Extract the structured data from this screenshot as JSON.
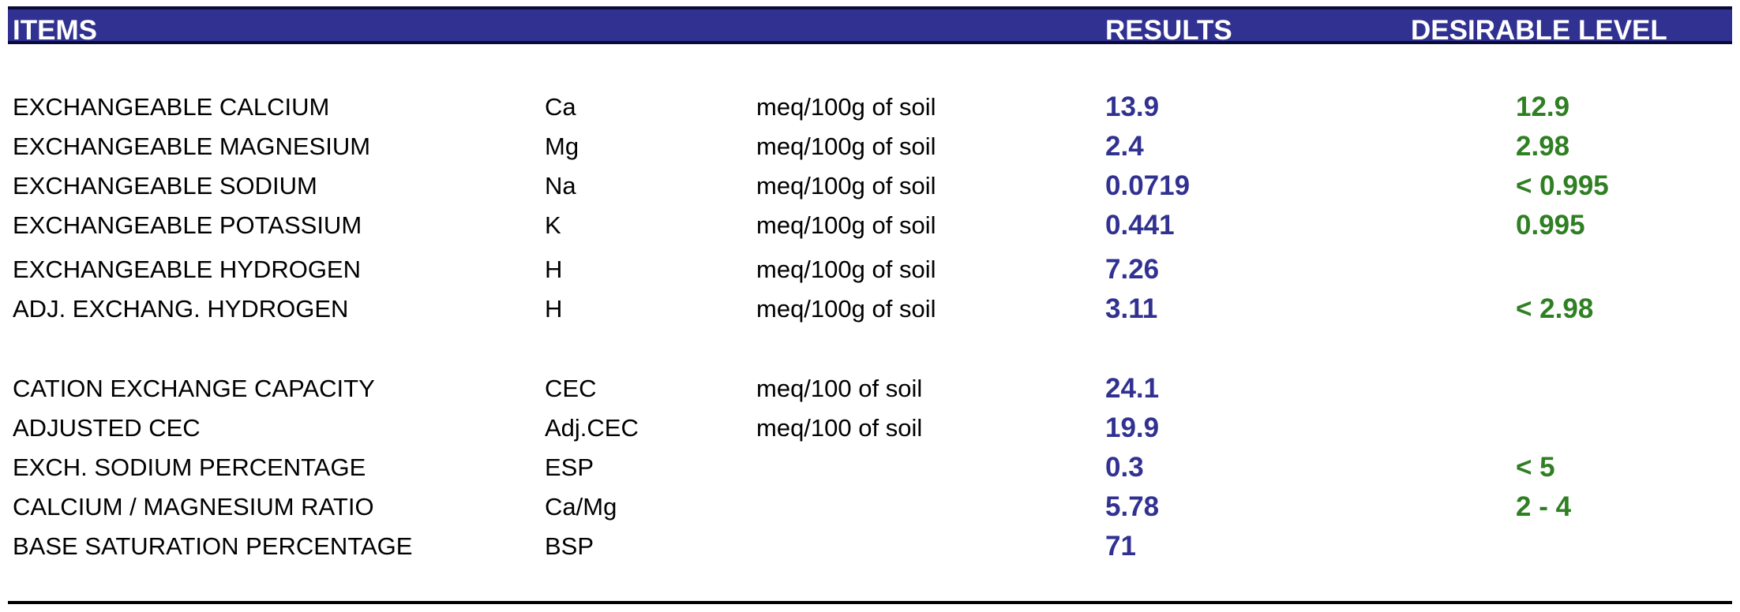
{
  "header": {
    "items_label": "ITEMS",
    "results_label": "RESULTS",
    "desirable_label": "DESIRABLE LEVEL"
  },
  "rows": [
    {
      "item": "EXCHANGEABLE CALCIUM",
      "symbol": "Ca",
      "unit": "meq/100g of soil",
      "result": "13.9",
      "desirable": "12.9"
    },
    {
      "item": "EXCHANGEABLE MAGNESIUM",
      "symbol": "Mg",
      "unit": "meq/100g of soil",
      "result": "2.4",
      "desirable": "2.98"
    },
    {
      "item": "EXCHANGEABLE SODIUM",
      "symbol": "Na",
      "unit": "meq/100g of soil",
      "result": "0.0719",
      "desirable": "< 0.995"
    },
    {
      "item": "EXCHANGEABLE POTASSIUM",
      "symbol": "K",
      "unit": "meq/100g of soil",
      "result": "0.441",
      "desirable": "0.995"
    },
    {
      "item": "EXCHANGEABLE HYDROGEN",
      "symbol": "H",
      "unit": "meq/100g of soil",
      "result": "7.26",
      "desirable": ""
    },
    {
      "item": "ADJ. EXCHANG. HYDROGEN",
      "symbol": "H",
      "unit": "meq/100g of soil",
      "result": "3.11",
      "desirable": "< 2.98"
    },
    {
      "item": "CATION EXCHANGE CAPACITY",
      "symbol": "CEC",
      "unit": "meq/100 of soil",
      "result": "24.1",
      "desirable": ""
    },
    {
      "item": "ADJUSTED CEC",
      "symbol": "Adj.CEC",
      "unit": "meq/100 of soil",
      "result": "19.9",
      "desirable": ""
    },
    {
      "item": "EXCH. SODIUM PERCENTAGE",
      "symbol": "ESP",
      "unit": "",
      "result": "0.3",
      "desirable": "< 5"
    },
    {
      "item": "CALCIUM / MAGNESIUM RATIO",
      "symbol": "Ca/Mg",
      "unit": "",
      "result": "5.78",
      "desirable": "2 - 4"
    },
    {
      "item": "BASE SATURATION PERCENTAGE",
      "symbol": "BSP",
      "unit": "",
      "result": "71",
      "desirable": ""
    }
  ],
  "colors": {
    "header_bg": "#313192",
    "result_text": "#313192",
    "desirable_text": "#2f7f23"
  }
}
